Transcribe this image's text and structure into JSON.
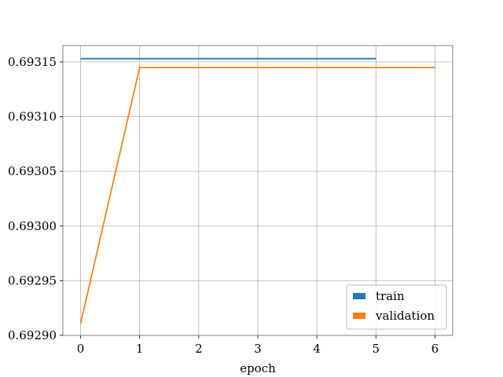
{
  "chart_data": {
    "type": "line",
    "xlabel": "epoch",
    "ylabel": "",
    "title": "",
    "xlim": [
      -0.3,
      6.3
    ],
    "ylim": [
      0.6929,
      0.693165
    ],
    "x_ticks": [
      0,
      1,
      2,
      3,
      4,
      5,
      6
    ],
    "x_tick_labels": [
      "0",
      "1",
      "2",
      "3",
      "4",
      "5",
      "6"
    ],
    "y_ticks": [
      0.6929,
      0.69295,
      0.693,
      0.69305,
      0.6931,
      0.69315
    ],
    "y_tick_labels": [
      "0.69290",
      "0.69295",
      "0.69300",
      "0.69305",
      "0.69310",
      "0.69315"
    ],
    "grid": true,
    "legend_position": "lower-right",
    "series": [
      {
        "name": "train",
        "color": "#1f77b4",
        "x": [
          0,
          1,
          2,
          3,
          4,
          5
        ],
        "y": [
          0.693153,
          0.693153,
          0.693153,
          0.693153,
          0.693153,
          0.693153
        ]
      },
      {
        "name": "validation",
        "color": "#ff7f0e",
        "x": [
          0,
          1,
          2,
          3,
          4,
          5,
          6
        ],
        "y": [
          0.692911,
          0.693145,
          0.693145,
          0.693145,
          0.693145,
          0.693145,
          0.693145
        ]
      }
    ]
  }
}
